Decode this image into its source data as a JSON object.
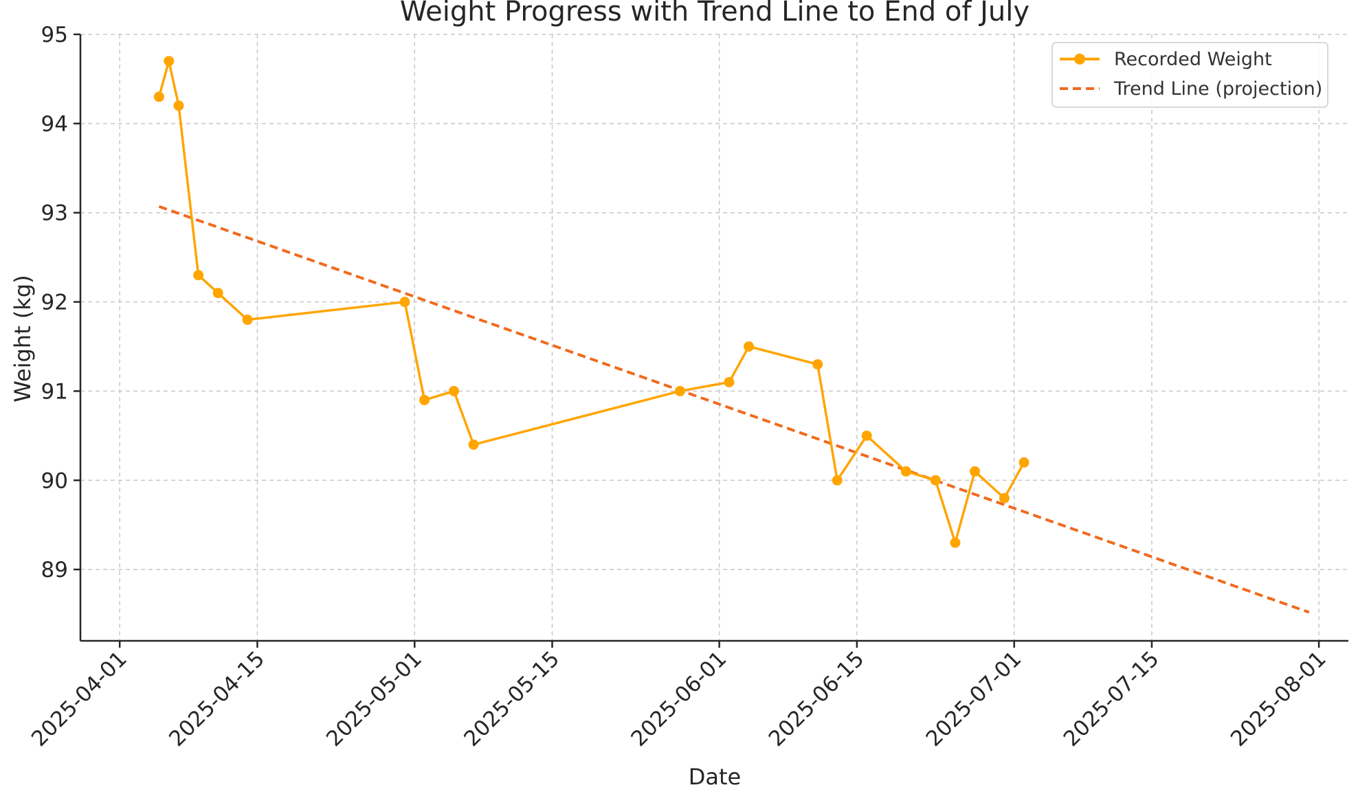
{
  "chart_data": {
    "type": "line",
    "title": "Weight Progress with Trend Line to End of July",
    "xlabel": "Date",
    "ylabel": "Weight (kg)",
    "x_axis_type": "date",
    "xlim": [
      "2025-03-28",
      "2025-08-04"
    ],
    "ylim": [
      88.2,
      95
    ],
    "x_ticks": [
      "2025-04-01",
      "2025-04-15",
      "2025-05-01",
      "2025-05-15",
      "2025-06-01",
      "2025-06-15",
      "2025-07-01",
      "2025-07-15",
      "2025-08-01"
    ],
    "y_ticks": [
      89,
      90,
      91,
      92,
      93,
      94,
      95
    ],
    "grid": true,
    "legend_position": "top-right",
    "series": [
      {
        "name": "Recorded Weight",
        "style": "solid line with circle markers",
        "color": "#FFA500",
        "x": [
          "2025-04-05",
          "2025-04-06",
          "2025-04-07",
          "2025-04-09",
          "2025-04-11",
          "2025-04-14",
          "2025-04-30",
          "2025-05-02",
          "2025-05-05",
          "2025-05-07",
          "2025-05-28",
          "2025-06-02",
          "2025-06-04",
          "2025-06-11",
          "2025-06-13",
          "2025-06-16",
          "2025-06-20",
          "2025-06-23",
          "2025-06-25",
          "2025-06-27",
          "2025-06-30",
          "2025-07-02"
        ],
        "y": [
          94.3,
          94.7,
          94.2,
          92.3,
          92.1,
          91.8,
          92.0,
          90.9,
          91.0,
          90.4,
          91.0,
          91.1,
          91.5,
          91.3,
          90.0,
          90.5,
          90.1,
          90.0,
          89.3,
          90.1,
          89.8,
          90.2
        ]
      },
      {
        "name": "Trend Line (projection)",
        "style": "dashed line",
        "color": "#F06A1E",
        "x": [
          "2025-04-05",
          "2025-07-31"
        ],
        "y": [
          93.07,
          88.52
        ]
      }
    ]
  }
}
